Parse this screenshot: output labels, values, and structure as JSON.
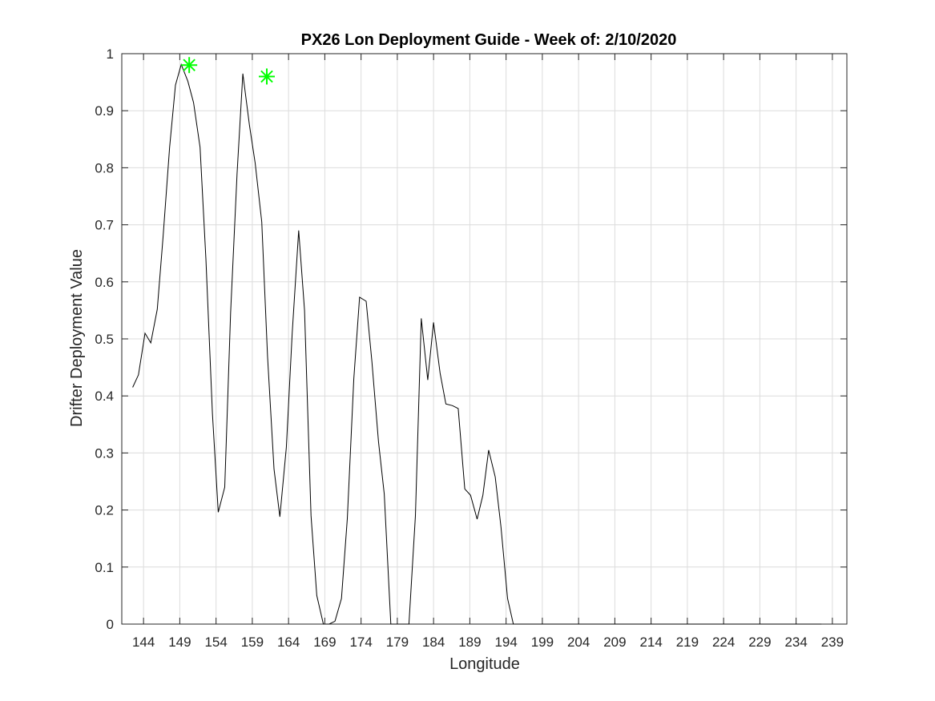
{
  "chart_data": {
    "type": "line",
    "title": "PX26 Lon Deployment Guide - Week of: 2/10/2020",
    "xlabel": "Longitude",
    "ylabel": "Drifter Deployment Value",
    "xlim": [
      141,
      241
    ],
    "ylim": [
      0,
      1
    ],
    "xticks": [
      144,
      149,
      154,
      159,
      164,
      169,
      174,
      179,
      184,
      189,
      194,
      199,
      204,
      209,
      214,
      219,
      224,
      229,
      234,
      239
    ],
    "yticks": [
      0,
      0.1,
      0.2,
      0.3,
      0.4,
      0.5,
      0.6,
      0.7,
      0.8,
      0.9,
      1
    ],
    "grid": true,
    "colors": {
      "line": "#000000",
      "markers": "#00ff00",
      "grid": "#dcdcdc"
    },
    "series": [
      {
        "x": [
          142.5,
          143.3,
          144.2,
          145.0,
          145.9,
          146.7,
          147.6,
          148.4,
          149.2,
          150.1,
          150.9,
          151.8,
          152.6,
          153.5,
          154.3,
          155.2,
          156.0,
          156.9,
          157.7,
          158.6,
          159.4,
          160.3,
          161.1,
          162.0,
          162.8,
          163.7,
          164.5,
          165.4,
          166.2,
          167.1,
          167.9,
          168.8,
          169.6,
          170.4,
          171.3,
          172.1,
          173.0,
          173.8,
          174.7,
          175.5,
          176.4,
          177.2,
          178.1,
          178.9,
          179.8,
          180.6,
          181.5,
          182.3,
          183.2,
          184.0,
          184.9,
          185.7,
          186.6,
          187.4,
          188.3,
          189.1,
          190.0,
          190.8,
          191.6,
          192.5,
          193.3,
          194.2,
          195.0,
          199.3,
          200.1,
          201.0,
          201.8,
          202.7,
          203.5,
          204.4,
          205.2,
          206.1,
          206.9,
          207.8,
          208.6,
          209.5,
          210.3,
          211.2,
          212.0,
          212.8,
          213.7,
          214.5,
          215.4,
          216.2,
          217.1,
          217.9,
          218.8,
          219.6,
          220.5,
          221.3,
          222.2,
          223.0,
          223.9,
          224.7,
          225.6,
          226.4,
          227.3,
          228.1,
          229.0,
          229.8,
          230.7,
          231.5,
          232.4,
          233.2,
          234.1,
          234.9,
          235.8,
          236.6,
          237.5
        ],
        "y": [
          0.415,
          0.437,
          0.51,
          0.493,
          0.552,
          0.68,
          0.836,
          0.945,
          0.981,
          0.952,
          0.914,
          0.836,
          0.64,
          0.37,
          0.196,
          0.24,
          0.545,
          0.79,
          0.965,
          0.875,
          0.808,
          0.705,
          0.47,
          0.272,
          0.188,
          0.31,
          0.51,
          0.69,
          0.55,
          0.19,
          0.05,
          0.0,
          0.0,
          0.005,
          0.045,
          0.185,
          0.43,
          0.573,
          0.566,
          0.46,
          0.32,
          0.228,
          0.0,
          0.0,
          0.0,
          0.0,
          0.19,
          0.536,
          0.428,
          0.529,
          0.44,
          0.386,
          0.383,
          0.378,
          0.237,
          0.226,
          0.184,
          0.226,
          0.305,
          0.258,
          0.17,
          0.045,
          0.0,
          0.0,
          0.0,
          0.0,
          0.0,
          0.0,
          0.0,
          0.0,
          0.0,
          0.0,
          0.0,
          0.0,
          0.0,
          0.0,
          0.0,
          0.0,
          0.0,
          0.0,
          0.0,
          0.0,
          0.0,
          0.0,
          0.0,
          0.0,
          0.0,
          0.0,
          0.0,
          0.0,
          0.0,
          0.0,
          0.0,
          0.0,
          0.0,
          0.0,
          0.0,
          0.0,
          0.0,
          0.0,
          0.0,
          0.0,
          0.0,
          0.0,
          0.0,
          0.0,
          0.0,
          0.0,
          0.0
        ]
      }
    ],
    "highlighted_points": [
      {
        "x": 150.3,
        "y": 0.98
      },
      {
        "x": 161.0,
        "y": 0.96
      }
    ]
  }
}
